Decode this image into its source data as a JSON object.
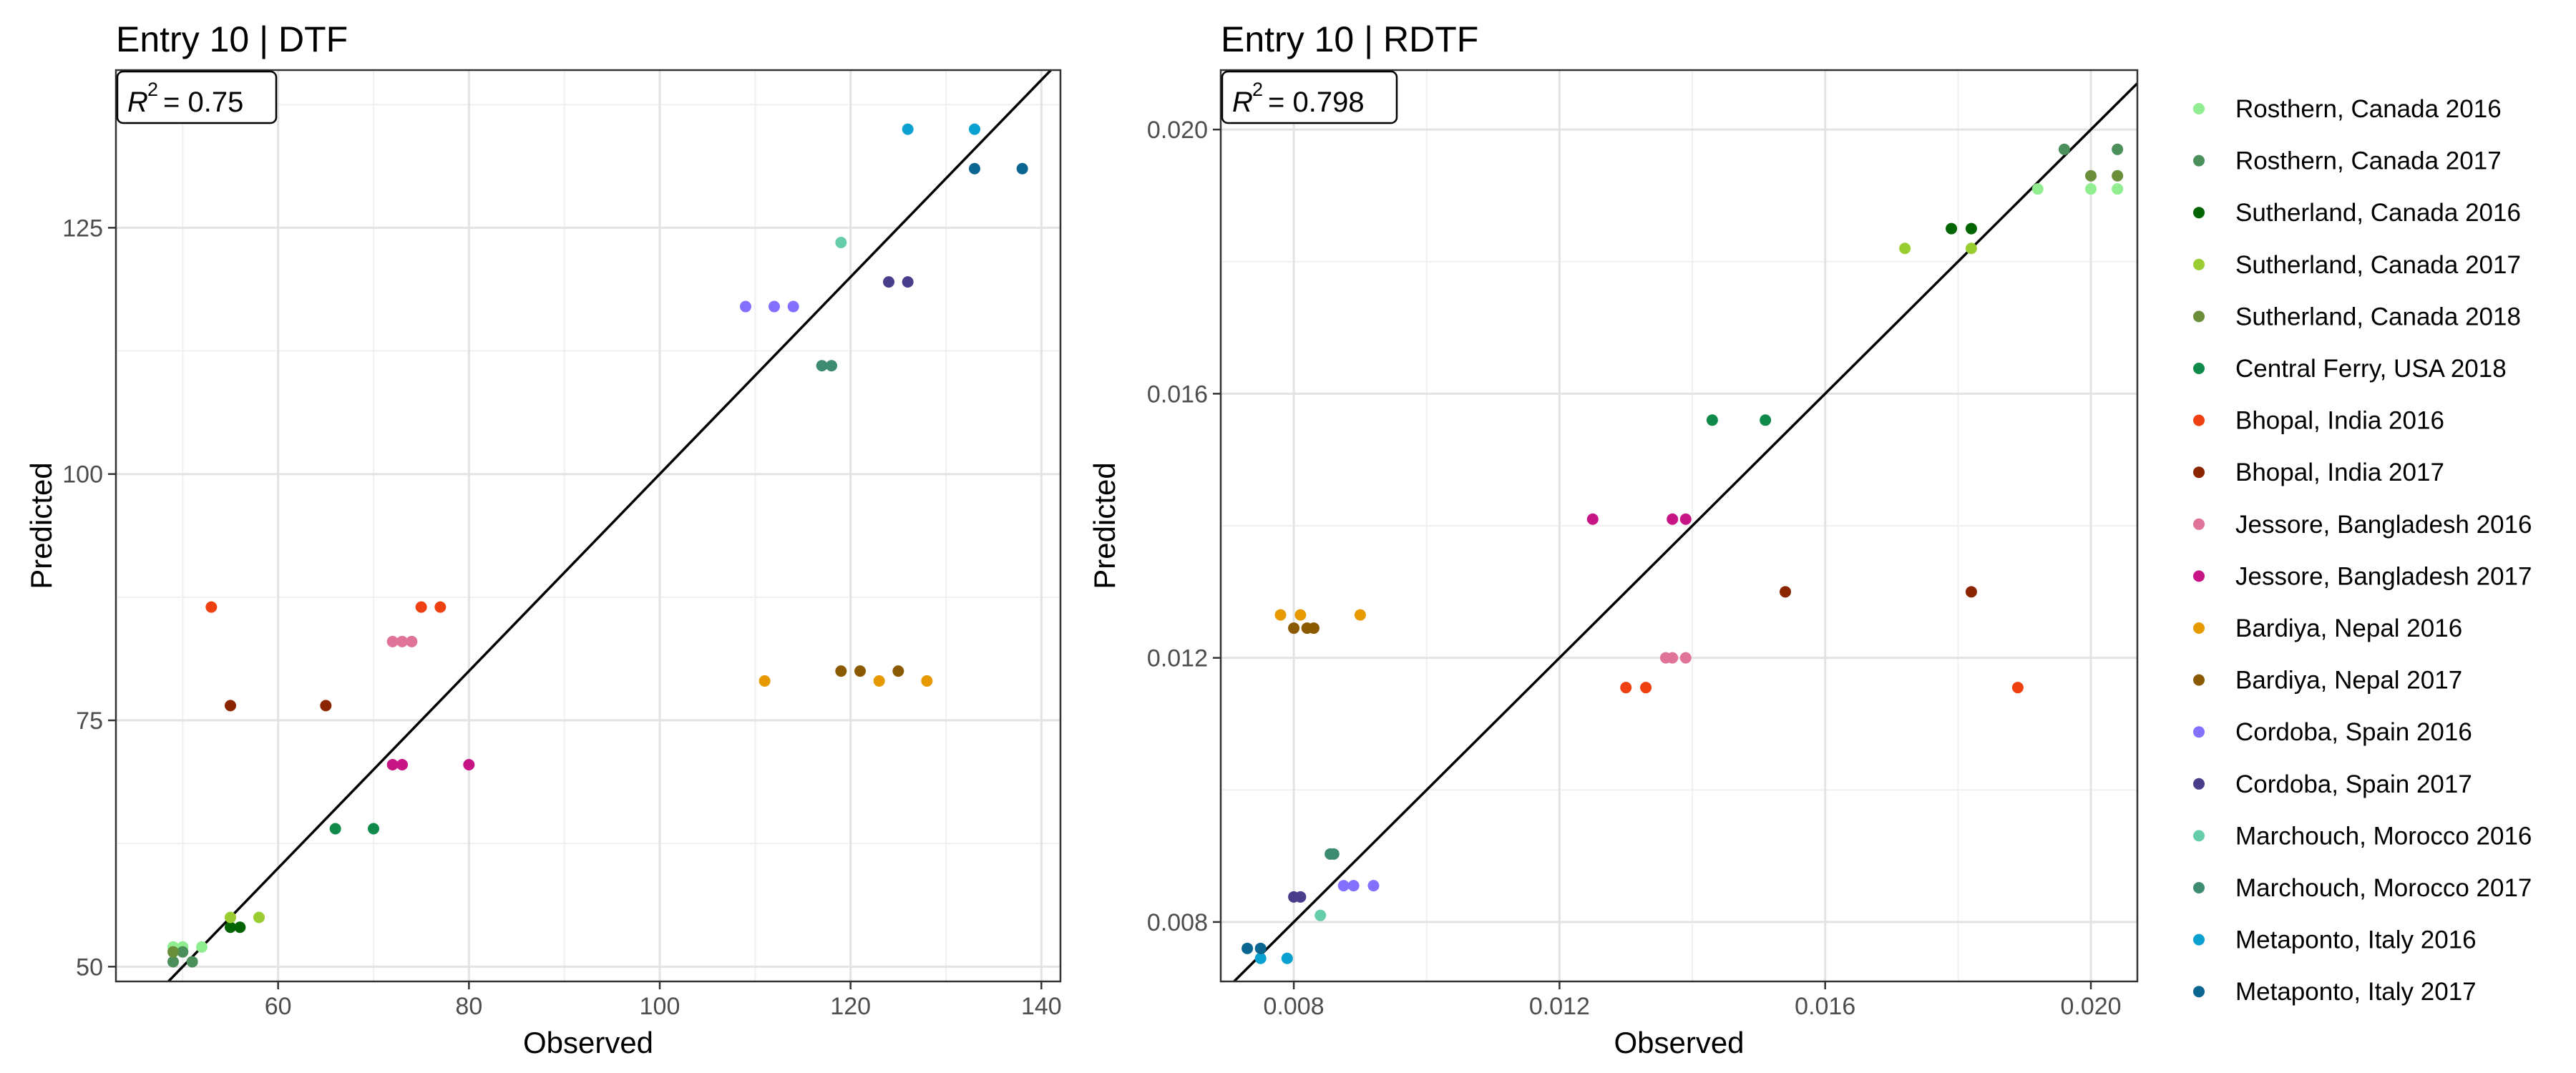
{
  "sites": [
    {
      "name": "Rosthern, Canada 2016",
      "color": "#90ee90"
    },
    {
      "name": "Rosthern, Canada 2017",
      "color": "#4b8f5b"
    },
    {
      "name": "Sutherland, Canada 2016",
      "color": "#006400"
    },
    {
      "name": "Sutherland, Canada 2017",
      "color": "#9acd32"
    },
    {
      "name": "Sutherland, Canada 2018",
      "color": "#6b8e3a"
    },
    {
      "name": "Central Ferry, USA 2018",
      "color": "#0f8a4a"
    },
    {
      "name": "Bhopal, India 2016",
      "color": "#ee4010"
    },
    {
      "name": "Bhopal, India 2017",
      "color": "#8b2500"
    },
    {
      "name": "Jessore, Bangladesh 2016",
      "color": "#e0739a"
    },
    {
      "name": "Jessore, Bangladesh 2017",
      "color": "#c71585"
    },
    {
      "name": "Bardiya, Nepal 2016",
      "color": "#e69a00"
    },
    {
      "name": "Bardiya, Nepal 2017",
      "color": "#8b5a00"
    },
    {
      "name": "Cordoba, Spain 2016",
      "color": "#8470ff"
    },
    {
      "name": "Cordoba, Spain 2017",
      "color": "#483d8b"
    },
    {
      "name": "Marchouch, Morocco 2016",
      "color": "#66cdaa"
    },
    {
      "name": "Marchouch, Morocco 2017",
      "color": "#3d8b70"
    },
    {
      "name": "Metaponto, Italy 2016",
      "color": "#0aa0d0"
    },
    {
      "name": "Metaponto, Italy 2017",
      "color": "#0a6690"
    }
  ],
  "chart_data": [
    {
      "type": "scatter",
      "title": "Entry 10 | DTF",
      "r2_label": "R",
      "r2_sup": "2",
      "r2_value": "= 0.75",
      "xlabel": "Observed",
      "ylabel": "Predicted",
      "xlim": [
        43,
        142
      ],
      "ylim": [
        48.5,
        141
      ],
      "xticks": [
        60,
        80,
        100,
        120,
        140
      ],
      "yticks": [
        50,
        75,
        100,
        125
      ],
      "tick_labels_x": [
        "60",
        "80",
        "100",
        "120",
        "140"
      ],
      "tick_labels_y": [
        "50",
        "75",
        "100",
        "125"
      ],
      "reference_line": "y = x",
      "grid": true,
      "points": [
        {
          "site": 0,
          "x": 49,
          "y": 52
        },
        {
          "site": 0,
          "x": 50,
          "y": 52
        },
        {
          "site": 0,
          "x": 52,
          "y": 52
        },
        {
          "site": 1,
          "x": 49,
          "y": 50.5
        },
        {
          "site": 1,
          "x": 51,
          "y": 50.5
        },
        {
          "site": 1,
          "x": 50,
          "y": 51.5
        },
        {
          "site": 2,
          "x": 55,
          "y": 54
        },
        {
          "site": 2,
          "x": 56,
          "y": 54
        },
        {
          "site": 3,
          "x": 55,
          "y": 55
        },
        {
          "site": 3,
          "x": 58,
          "y": 55
        },
        {
          "site": 4,
          "x": 49,
          "y": 51.5
        },
        {
          "site": 5,
          "x": 66,
          "y": 64
        },
        {
          "site": 5,
          "x": 70,
          "y": 64
        },
        {
          "site": 6,
          "x": 53,
          "y": 86.5
        },
        {
          "site": 6,
          "x": 75,
          "y": 86.5
        },
        {
          "site": 6,
          "x": 77,
          "y": 86.5
        },
        {
          "site": 7,
          "x": 55,
          "y": 76.5
        },
        {
          "site": 7,
          "x": 65,
          "y": 76.5
        },
        {
          "site": 8,
          "x": 72,
          "y": 83
        },
        {
          "site": 8,
          "x": 73,
          "y": 83
        },
        {
          "site": 8,
          "x": 74,
          "y": 83
        },
        {
          "site": 9,
          "x": 72,
          "y": 70.5
        },
        {
          "site": 9,
          "x": 73,
          "y": 70.5
        },
        {
          "site": 9,
          "x": 80,
          "y": 70.5
        },
        {
          "site": 10,
          "x": 111,
          "y": 79
        },
        {
          "site": 10,
          "x": 123,
          "y": 79
        },
        {
          "site": 10,
          "x": 128,
          "y": 79
        },
        {
          "site": 11,
          "x": 119,
          "y": 80
        },
        {
          "site": 11,
          "x": 121,
          "y": 80
        },
        {
          "site": 11,
          "x": 125,
          "y": 80
        },
        {
          "site": 12,
          "x": 109,
          "y": 117
        },
        {
          "site": 12,
          "x": 112,
          "y": 117
        },
        {
          "site": 12,
          "x": 114,
          "y": 117
        },
        {
          "site": 13,
          "x": 124,
          "y": 119.5
        },
        {
          "site": 13,
          "x": 126,
          "y": 119.5
        },
        {
          "site": 14,
          "x": 119,
          "y": 123.5
        },
        {
          "site": 15,
          "x": 117,
          "y": 111
        },
        {
          "site": 15,
          "x": 118,
          "y": 111
        },
        {
          "site": 16,
          "x": 126,
          "y": 135
        },
        {
          "site": 16,
          "x": 133,
          "y": 135
        },
        {
          "site": 17,
          "x": 133,
          "y": 131
        },
        {
          "site": 17,
          "x": 138,
          "y": 131
        }
      ]
    },
    {
      "type": "scatter",
      "title": "Entry 10 | RDTF",
      "r2_label": "R",
      "r2_sup": "2",
      "r2_value": "= 0.798",
      "xlabel": "Observed",
      "ylabel": "Predicted",
      "xlim": [
        0.0069,
        0.0207
      ],
      "ylim": [
        0.0071,
        0.0209
      ],
      "xticks": [
        0.008,
        0.012,
        0.016,
        0.02
      ],
      "yticks": [
        0.008,
        0.012,
        0.016,
        0.02
      ],
      "tick_labels_x": [
        "0.008",
        "0.012",
        "0.016",
        "0.020"
      ],
      "tick_labels_y": [
        "0.008",
        "0.012",
        "0.016",
        "0.020"
      ],
      "reference_line": "y = x",
      "grid": true,
      "points": [
        {
          "site": 0,
          "x": 0.0192,
          "y": 0.0191
        },
        {
          "site": 0,
          "x": 0.02,
          "y": 0.0191
        },
        {
          "site": 0,
          "x": 0.0204,
          "y": 0.0191
        },
        {
          "site": 1,
          "x": 0.0196,
          "y": 0.0197
        },
        {
          "site": 1,
          "x": 0.0204,
          "y": 0.0197
        },
        {
          "site": 2,
          "x": 0.0179,
          "y": 0.0185
        },
        {
          "site": 2,
          "x": 0.0182,
          "y": 0.0185
        },
        {
          "site": 3,
          "x": 0.0172,
          "y": 0.0182
        },
        {
          "site": 3,
          "x": 0.0182,
          "y": 0.0182
        },
        {
          "site": 4,
          "x": 0.02,
          "y": 0.0193
        },
        {
          "site": 4,
          "x": 0.0204,
          "y": 0.0193
        },
        {
          "site": 5,
          "x": 0.0143,
          "y": 0.0156
        },
        {
          "site": 5,
          "x": 0.0151,
          "y": 0.0156
        },
        {
          "site": 6,
          "x": 0.013,
          "y": 0.01155
        },
        {
          "site": 6,
          "x": 0.0133,
          "y": 0.01155
        },
        {
          "site": 6,
          "x": 0.0189,
          "y": 0.01155
        },
        {
          "site": 7,
          "x": 0.0154,
          "y": 0.013
        },
        {
          "site": 7,
          "x": 0.0182,
          "y": 0.013
        },
        {
          "site": 8,
          "x": 0.0136,
          "y": 0.012
        },
        {
          "site": 8,
          "x": 0.0137,
          "y": 0.012
        },
        {
          "site": 8,
          "x": 0.0139,
          "y": 0.012
        },
        {
          "site": 9,
          "x": 0.0125,
          "y": 0.0141
        },
        {
          "site": 9,
          "x": 0.0137,
          "y": 0.0141
        },
        {
          "site": 9,
          "x": 0.0139,
          "y": 0.0141
        },
        {
          "site": 10,
          "x": 0.0078,
          "y": 0.01265
        },
        {
          "site": 10,
          "x": 0.0081,
          "y": 0.01265
        },
        {
          "site": 10,
          "x": 0.009,
          "y": 0.01265
        },
        {
          "site": 11,
          "x": 0.008,
          "y": 0.01245
        },
        {
          "site": 11,
          "x": 0.0082,
          "y": 0.01245
        },
        {
          "site": 11,
          "x": 0.0083,
          "y": 0.01245
        },
        {
          "site": 12,
          "x": 0.00875,
          "y": 0.00855
        },
        {
          "site": 12,
          "x": 0.0089,
          "y": 0.00855
        },
        {
          "site": 12,
          "x": 0.0092,
          "y": 0.00855
        },
        {
          "site": 13,
          "x": 0.008,
          "y": 0.00838
        },
        {
          "site": 13,
          "x": 0.0081,
          "y": 0.00838
        },
        {
          "site": 14,
          "x": 0.0084,
          "y": 0.0081
        },
        {
          "site": 15,
          "x": 0.00855,
          "y": 0.00903
        },
        {
          "site": 15,
          "x": 0.0086,
          "y": 0.00903
        },
        {
          "site": 16,
          "x": 0.0075,
          "y": 0.00745
        },
        {
          "site": 16,
          "x": 0.0079,
          "y": 0.00745
        },
        {
          "site": 17,
          "x": 0.0073,
          "y": 0.0076
        },
        {
          "site": 17,
          "x": 0.0075,
          "y": 0.0076
        }
      ]
    }
  ]
}
